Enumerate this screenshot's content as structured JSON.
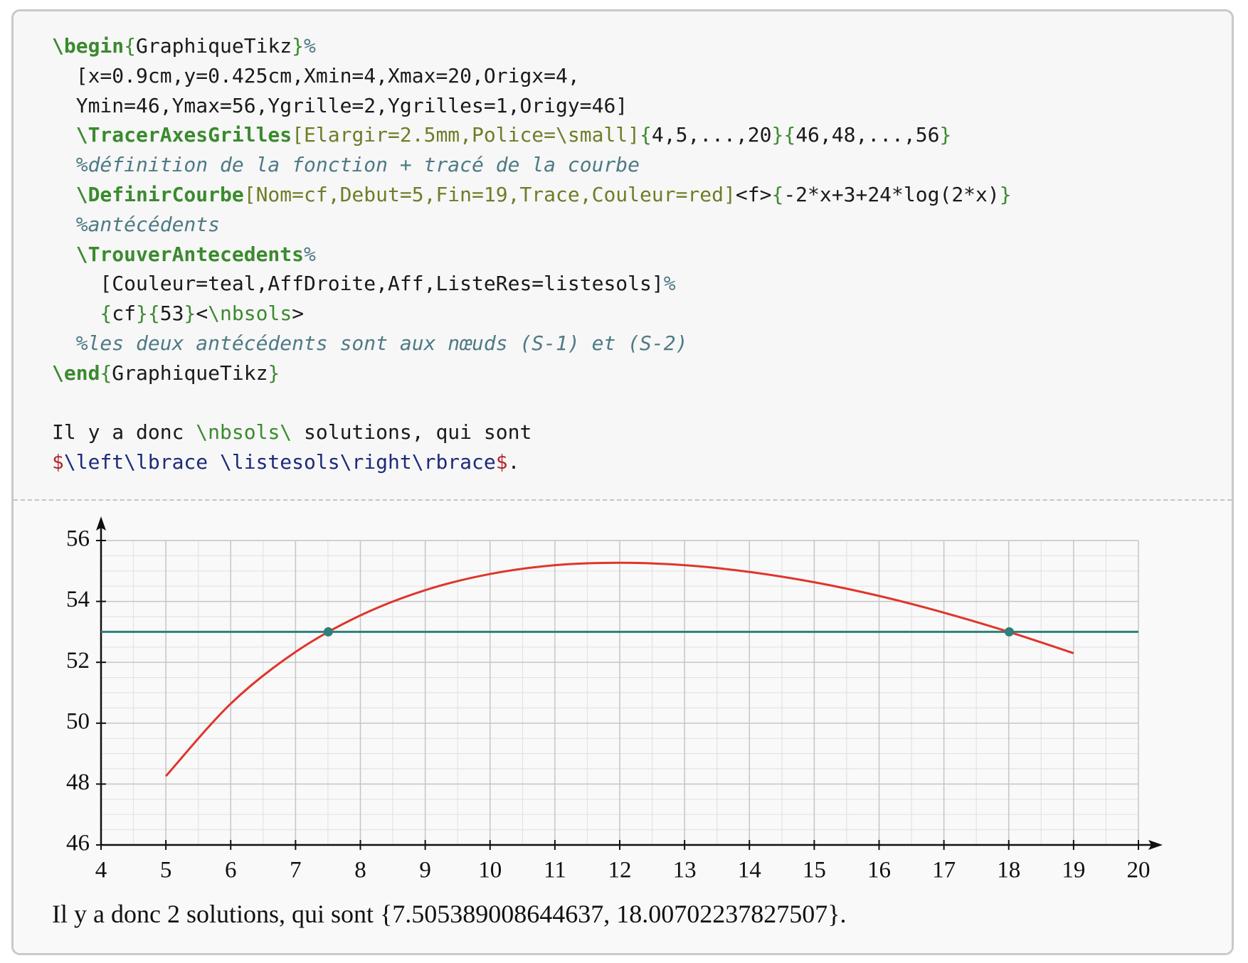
{
  "code": {
    "lines": [
      [
        {
          "text": "\\begin",
          "color": "#3b8a2f",
          "weight": "bold"
        },
        {
          "text": "{",
          "color": "#3b8a2f"
        },
        {
          "text": "GraphiqueTikz",
          "color": "#1a1a1a"
        },
        {
          "text": "}",
          "color": "#3b8a2f"
        },
        {
          "text": "%",
          "color": "#4e7a85",
          "style": "italic"
        }
      ],
      [
        {
          "text": "  [x=0.9cm,y=0.425cm,Xmin=4,Xmax=20,Origx=4,",
          "color": "#1a1a1a"
        }
      ],
      [
        {
          "text": "  Ymin=46,Ymax=56,Ygrille=2,Ygrilles=1,Origy=46]",
          "color": "#1a1a1a"
        }
      ],
      [
        {
          "text": "  \\TracerAxesGrilles",
          "color": "#3b8a2f",
          "weight": "bold"
        },
        {
          "text": "[Elargir=2.5mm,Police=\\small]",
          "color": "#6e7d27"
        },
        {
          "text": "{",
          "color": "#3b8a2f"
        },
        {
          "text": "4,5,...,20",
          "color": "#1a1a1a"
        },
        {
          "text": "}{",
          "color": "#3b8a2f"
        },
        {
          "text": "46,48,...,56",
          "color": "#1a1a1a"
        },
        {
          "text": "}",
          "color": "#3b8a2f"
        }
      ],
      [
        {
          "text": "  %définition de la fonction + tracé de la courbe",
          "color": "#4e7a85",
          "style": "italic"
        }
      ],
      [
        {
          "text": "  \\DefinirCourbe",
          "color": "#3b8a2f",
          "weight": "bold"
        },
        {
          "text": "[Nom=cf,Debut=5,Fin=19,Trace,Couleur=red]",
          "color": "#6e7d27"
        },
        {
          "text": "<f>",
          "color": "#1a1a1a"
        },
        {
          "text": "{",
          "color": "#3b8a2f"
        },
        {
          "text": "-2*x+3+24*log(2*x)",
          "color": "#1a1a1a"
        },
        {
          "text": "}",
          "color": "#3b8a2f"
        }
      ],
      [
        {
          "text": "  %antécédents",
          "color": "#4e7a85",
          "style": "italic"
        }
      ],
      [
        {
          "text": "  \\TrouverAntecedents",
          "color": "#3b8a2f",
          "weight": "bold"
        },
        {
          "text": "%",
          "color": "#4e7a85",
          "style": "italic"
        }
      ],
      [
        {
          "text": "    [Couleur=teal,AffDroite,Aff,ListeRes=listesols]",
          "color": "#1a1a1a"
        },
        {
          "text": "%",
          "color": "#4e7a85",
          "style": "italic"
        }
      ],
      [
        {
          "text": "    {",
          "color": "#3b8a2f"
        },
        {
          "text": "cf",
          "color": "#1a1a1a"
        },
        {
          "text": "}{",
          "color": "#3b8a2f"
        },
        {
          "text": "53",
          "color": "#1a1a1a"
        },
        {
          "text": "}",
          "color": "#3b8a2f"
        },
        {
          "text": "<",
          "color": "#1a1a1a"
        },
        {
          "text": "\\nbsols",
          "color": "#3b8a2f"
        },
        {
          "text": ">",
          "color": "#1a1a1a"
        }
      ],
      [
        {
          "text": "  %les deux antécédents sont aux nœuds (S-1) et (S-2)",
          "color": "#4e7a85",
          "style": "italic"
        }
      ],
      [
        {
          "text": "\\end",
          "color": "#3b8a2f",
          "weight": "bold"
        },
        {
          "text": "{",
          "color": "#3b8a2f"
        },
        {
          "text": "GraphiqueTikz",
          "color": "#1a1a1a"
        },
        {
          "text": "}",
          "color": "#3b8a2f"
        }
      ],
      [],
      [
        {
          "text": "Il y a donc ",
          "color": "#1a1a1a"
        },
        {
          "text": "\\nbsols\\",
          "color": "#3b8a2f"
        },
        {
          "text": " solutions, qui sont",
          "color": "#1a1a1a"
        }
      ],
      [
        {
          "text": "$",
          "color": "#b0262a"
        },
        {
          "text": "\\left\\lbrace \\listesols\\right\\rbrace",
          "color": "#1c2a7a"
        },
        {
          "text": "$",
          "color": "#b0262a"
        },
        {
          "text": ".",
          "color": "#1a1a1a"
        }
      ]
    ]
  },
  "chart_data": {
    "type": "line",
    "x": [
      5,
      6,
      7,
      8,
      9,
      10,
      11,
      12,
      13,
      14,
      15,
      16,
      17,
      18,
      19
    ],
    "series": [
      {
        "color": "#e0352b",
        "values": [
          48.26,
          50.64,
          52.34,
          53.54,
          54.37,
          54.9,
          55.19,
          55.27,
          55.19,
          54.97,
          54.63,
          54.18,
          53.63,
          53.0,
          52.3
        ]
      }
    ],
    "hline": {
      "value": 53,
      "color": "#2f7f7a"
    },
    "points": {
      "x": [
        7.505389008644637,
        18.00702237827507
      ],
      "y": [
        53,
        53
      ],
      "color": "#2f7f7a"
    },
    "xlim": [
      4,
      20
    ],
    "ylim": [
      46,
      56
    ],
    "xticks": [
      4,
      5,
      6,
      7,
      8,
      9,
      10,
      11,
      12,
      13,
      14,
      15,
      16,
      17,
      18,
      19,
      20
    ],
    "yticks": [
      46,
      48,
      50,
      52,
      54,
      56
    ],
    "grid": true,
    "minor_grid": {
      "x": 0.5,
      "y": 0.5
    }
  },
  "result": "Il y a donc 2 solutions, qui sont {7.505389008644637, 18.00702237827507}."
}
